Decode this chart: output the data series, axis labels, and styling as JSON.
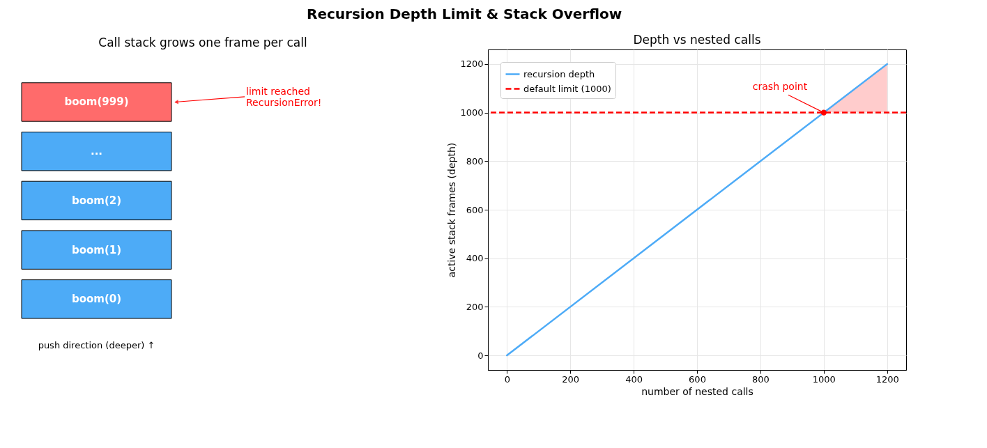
{
  "chart_data": [
    {
      "type": "other",
      "title": "Recursion Depth Limit & Stack Overflow",
      "subtitle": "Call stack grows one frame per call",
      "categories": [
        "boom(999)",
        "...",
        "boom(2)",
        "boom(1)",
        "boom(0)"
      ],
      "colors": [
        "#ff6b6b",
        "#4dabf7",
        "#4dabf7",
        "#4dabf7",
        "#4dabf7"
      ],
      "annotations": [
        "limit reached\nRecursionError!",
        "push direction (deeper) ↑"
      ]
    },
    {
      "type": "line",
      "title": "Depth vs nested calls",
      "xlabel": "number of nested calls",
      "ylabel": "active stack frames (depth)",
      "series": [
        {
          "type": "area",
          "color": "#ffcccc",
          "x": [
            1000,
            1200
          ],
          "values": [
            1000,
            1200
          ]
        },
        {
          "type": "line",
          "name": "recursion depth",
          "color": "#4dabf7",
          "x": [
            0,
            1200
          ],
          "values": [
            0,
            1200
          ]
        },
        {
          "type": "scatter",
          "color": "#ff0000",
          "marker": "circle",
          "x": [
            1000
          ],
          "values": [
            1000
          ]
        }
      ],
      "ref_lines": [
        {
          "axis": "y",
          "value": 1000,
          "label": "default limit (1000)",
          "color": "#ff0000",
          "line_style": "dashed"
        }
      ],
      "annotations": [
        {
          "text": "crash point",
          "x": 1000,
          "y": 1000
        }
      ],
      "xlim": [
        -60,
        1260
      ],
      "ylim": [
        -60,
        1260
      ],
      "xticks": [
        0,
        200,
        400,
        600,
        800,
        {
          "value": 1000,
          "label": "1000"
        },
        {
          "value": 1200,
          "label": "1200"
        }
      ],
      "yticks": [
        0,
        200,
        400,
        600,
        800,
        {
          "value": 1000,
          "label": "1000"
        },
        {
          "value": 1200,
          "label": "1200"
        }
      ],
      "grid": true,
      "legend": "top left"
    }
  ]
}
